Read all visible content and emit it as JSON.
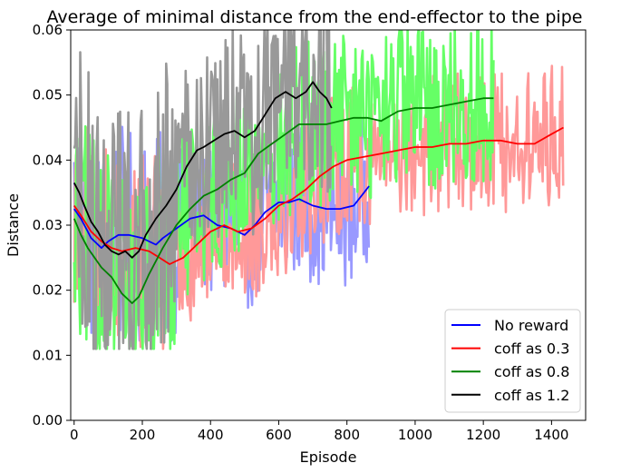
{
  "chart_data": {
    "type": "line",
    "title": "Average of minimal distance from the end-effector to the pipe",
    "xlabel": "Episode",
    "ylabel": "Distance",
    "xlim": [
      -10,
      1500
    ],
    "ylim": [
      0.0,
      0.06
    ],
    "x_ticks": [
      0,
      200,
      400,
      600,
      800,
      1000,
      1200,
      1400
    ],
    "y_ticks": [
      0.0,
      0.01,
      0.02,
      0.03,
      0.04,
      0.05,
      0.06
    ],
    "y_tick_labels": [
      "0.00",
      "0.01",
      "0.02",
      "0.03",
      "0.04",
      "0.05",
      "0.06"
    ],
    "grid": false,
    "legend_position": "bottom-right",
    "series": [
      {
        "name": "No reward",
        "color": "#0000ff",
        "raw_color": "#9999ff",
        "episodes": 865,
        "x": [
          0,
          20,
          50,
          80,
          100,
          130,
          160,
          200,
          240,
          260,
          300,
          340,
          380,
          420,
          460,
          500,
          530,
          560,
          600,
          630,
          660,
          700,
          740,
          780,
          820,
          850,
          865
        ],
        "values": [
          0.0325,
          0.031,
          0.028,
          0.0265,
          0.0275,
          0.0285,
          0.0285,
          0.028,
          0.027,
          0.028,
          0.0295,
          0.031,
          0.0315,
          0.03,
          0.0295,
          0.0285,
          0.03,
          0.032,
          0.0335,
          0.0335,
          0.034,
          0.033,
          0.0325,
          0.0325,
          0.033,
          0.035,
          0.036
        ]
      },
      {
        "name": "coff as 0.3",
        "color": "#ff0000",
        "raw_color": "#ff9999",
        "episodes": 1435,
        "x": [
          0,
          20,
          50,
          80,
          110,
          140,
          180,
          220,
          250,
          280,
          320,
          360,
          400,
          440,
          480,
          520,
          560,
          600,
          640,
          680,
          720,
          760,
          800,
          850,
          900,
          950,
          1000,
          1050,
          1100,
          1150,
          1200,
          1250,
          1300,
          1350,
          1400,
          1435
        ],
        "values": [
          0.033,
          0.0315,
          0.029,
          0.0275,
          0.0265,
          0.026,
          0.0265,
          0.026,
          0.025,
          0.024,
          0.025,
          0.027,
          0.029,
          0.03,
          0.029,
          0.0295,
          0.031,
          0.033,
          0.034,
          0.0355,
          0.0375,
          0.039,
          0.04,
          0.0405,
          0.041,
          0.0415,
          0.042,
          0.042,
          0.0425,
          0.0425,
          0.043,
          0.043,
          0.0425,
          0.0425,
          0.044,
          0.045
        ]
      },
      {
        "name": "coff as 0.8",
        "color": "#008000",
        "raw_color": "#66ff66",
        "episodes": 1230,
        "x": [
          0,
          20,
          40,
          60,
          80,
          110,
          140,
          170,
          190,
          220,
          260,
          300,
          340,
          380,
          420,
          460,
          500,
          540,
          580,
          620,
          660,
          700,
          740,
          780,
          820,
          860,
          900,
          950,
          1000,
          1050,
          1100,
          1150,
          1200,
          1230
        ],
        "values": [
          0.031,
          0.0285,
          0.0265,
          0.025,
          0.0235,
          0.022,
          0.0195,
          0.018,
          0.019,
          0.0225,
          0.0265,
          0.03,
          0.0325,
          0.0345,
          0.0355,
          0.037,
          0.038,
          0.041,
          0.0425,
          0.044,
          0.0455,
          0.0455,
          0.0455,
          0.046,
          0.0465,
          0.0465,
          0.046,
          0.0475,
          0.048,
          0.048,
          0.0485,
          0.049,
          0.0495,
          0.0495
        ]
      },
      {
        "name": "coff as 1.2",
        "color": "#000000",
        "raw_color": "#999999",
        "episodes": 755,
        "x": [
          0,
          15,
          30,
          50,
          70,
          90,
          110,
          130,
          150,
          170,
          190,
          210,
          240,
          270,
          300,
          330,
          360,
          380,
          410,
          440,
          470,
          500,
          530,
          560,
          590,
          620,
          650,
          680,
          700,
          720,
          740,
          755
        ],
        "values": [
          0.0365,
          0.035,
          0.033,
          0.0305,
          0.029,
          0.027,
          0.026,
          0.0255,
          0.026,
          0.025,
          0.026,
          0.0285,
          0.031,
          0.033,
          0.0355,
          0.039,
          0.0415,
          0.042,
          0.043,
          0.044,
          0.0445,
          0.0435,
          0.0445,
          0.047,
          0.0495,
          0.0505,
          0.0495,
          0.0505,
          0.052,
          0.0505,
          0.0495,
          0.048
        ]
      }
    ]
  }
}
